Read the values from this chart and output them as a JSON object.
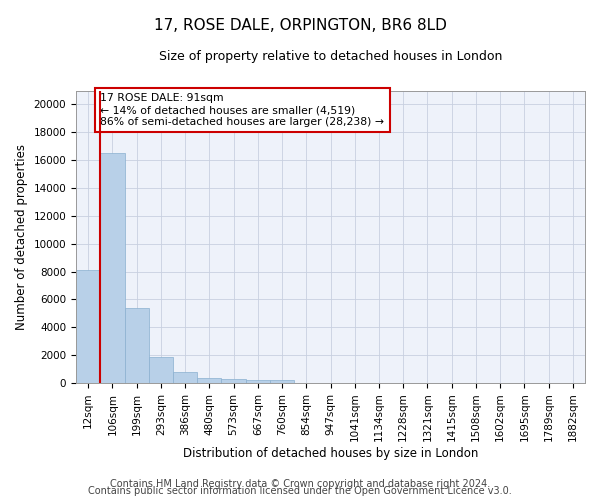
{
  "title_line1": "17, ROSE DALE, ORPINGTON, BR6 8LD",
  "title_line2": "Size of property relative to detached houses in London",
  "xlabel": "Distribution of detached houses by size in London",
  "ylabel": "Number of detached properties",
  "categories": [
    "12sqm",
    "106sqm",
    "199sqm",
    "293sqm",
    "386sqm",
    "480sqm",
    "573sqm",
    "667sqm",
    "760sqm",
    "854sqm",
    "947sqm",
    "1041sqm",
    "1134sqm",
    "1228sqm",
    "1321sqm",
    "1415sqm",
    "1508sqm",
    "1602sqm",
    "1695sqm",
    "1789sqm",
    "1882sqm"
  ],
  "values": [
    8100,
    16500,
    5350,
    1850,
    780,
    360,
    290,
    230,
    200,
    0,
    0,
    0,
    0,
    0,
    0,
    0,
    0,
    0,
    0,
    0,
    0
  ],
  "bar_color": "#b8d0e8",
  "bar_edge_color": "#8ab0d0",
  "vline_color": "#cc0000",
  "annotation_text": "17 ROSE DALE: 91sqm\n← 14% of detached houses are smaller (4,519)\n86% of semi-detached houses are larger (28,238) →",
  "annotation_box_color": "#ffffff",
  "annotation_box_edgecolor": "#cc0000",
  "ylim": [
    0,
    21000
  ],
  "yticks": [
    0,
    2000,
    4000,
    6000,
    8000,
    10000,
    12000,
    14000,
    16000,
    18000,
    20000
  ],
  "grid_color": "#c8d0e0",
  "background_color": "#eef2fa",
  "footer_line1": "Contains HM Land Registry data © Crown copyright and database right 2024.",
  "footer_line2": "Contains public sector information licensed under the Open Government Licence v3.0.",
  "title_fontsize": 11,
  "subtitle_fontsize": 9,
  "axis_label_fontsize": 8.5,
  "tick_fontsize": 7.5,
  "footer_fontsize": 7
}
